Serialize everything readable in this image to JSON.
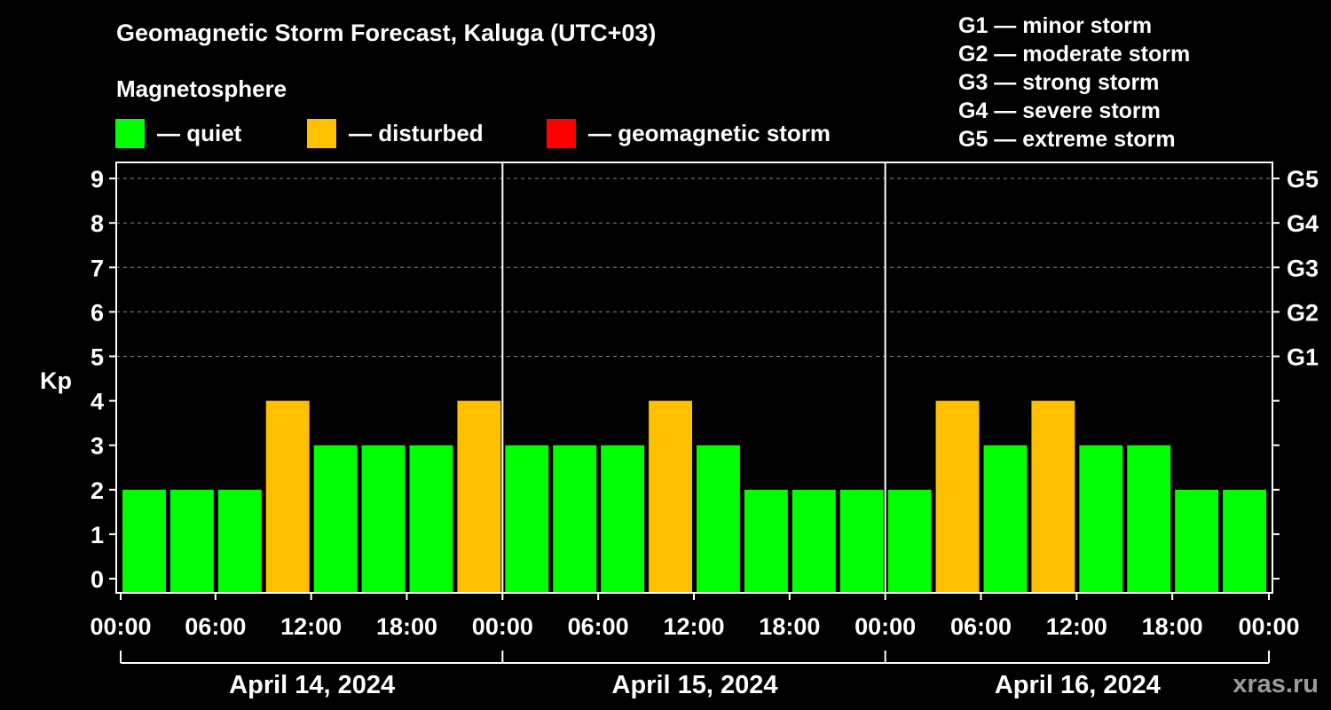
{
  "title": "Geomagnetic Storm Forecast, Kaluga (UTC+03)",
  "magnetosphere_label": "Magnetosphere",
  "legend": [
    {
      "label": "— quiet",
      "color": "#00ff00"
    },
    {
      "label": "— disturbed",
      "color": "#ffc000"
    },
    {
      "label": "— geomagnetic storm",
      "color": "#ff0000"
    }
  ],
  "g_scale": [
    "G1 — minor storm",
    "G2 — moderate storm",
    "G3 — strong storm",
    "G4 — severe storm",
    "G5 — extreme storm"
  ],
  "watermark": "xras.ru",
  "colors": {
    "quiet": "#00ff00",
    "disturbed": "#ffc000",
    "storm": "#ff0000"
  },
  "chart_data": {
    "type": "bar",
    "ylabel": "Kp",
    "ylim": [
      0,
      9
    ],
    "yticks": [
      "0",
      "1",
      "2",
      "3",
      "4",
      "5",
      "6",
      "7",
      "8",
      "9"
    ],
    "right_ticks": [
      {
        "kp": 5,
        "label": "G1"
      },
      {
        "kp": 6,
        "label": "G2"
      },
      {
        "kp": 7,
        "label": "G3"
      },
      {
        "kp": 8,
        "label": "G4"
      },
      {
        "kp": 9,
        "label": "G5"
      }
    ],
    "xtick_labels": [
      "00:00",
      "06:00",
      "12:00",
      "18:00",
      "00:00",
      "06:00",
      "12:00",
      "18:00",
      "00:00",
      "06:00",
      "12:00",
      "18:00",
      "00:00"
    ],
    "days": [
      "April 14, 2024",
      "April 15, 2024",
      "April 16, 2024"
    ],
    "interval_hours": 3,
    "values": [
      2,
      2,
      2,
      4,
      3,
      3,
      3,
      4,
      3,
      3,
      3,
      4,
      3,
      2,
      2,
      2,
      2,
      4,
      3,
      4,
      3,
      3,
      2,
      2
    ],
    "grid": "dashed horizontal at Kp 5-9"
  }
}
